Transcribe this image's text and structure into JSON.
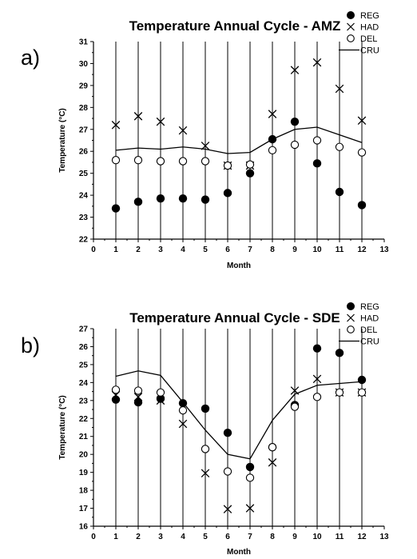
{
  "chart_data": [
    {
      "type": "scatter",
      "panel_label": "a)",
      "title": "Temperature Annual Cycle - AMZ",
      "xlabel": "Month",
      "ylabel": "Temperature (°C)",
      "xlim": [
        0,
        13
      ],
      "ylim": [
        22,
        31
      ],
      "x_ticks": [
        0,
        1,
        2,
        3,
        4,
        5,
        6,
        7,
        8,
        9,
        10,
        11,
        12,
        13
      ],
      "y_ticks": [
        22,
        23,
        24,
        25,
        26,
        27,
        28,
        29,
        30,
        31
      ],
      "vertical_grid": true,
      "legend_position": "top-right",
      "x": [
        1,
        2,
        3,
        4,
        5,
        6,
        7,
        8,
        9,
        10,
        11,
        12
      ],
      "series": [
        {
          "name": "REG",
          "marker": "filled-circle",
          "values": [
            23.4,
            23.7,
            23.85,
            23.85,
            23.8,
            24.1,
            25.0,
            26.55,
            27.35,
            25.45,
            24.15,
            23.55
          ]
        },
        {
          "name": "HAD",
          "marker": "x",
          "values": [
            27.2,
            27.6,
            27.35,
            26.95,
            26.25,
            25.35,
            25.35,
            27.7,
            29.7,
            30.05,
            28.85,
            27.4
          ]
        },
        {
          "name": "DEL",
          "marker": "open-circle",
          "values": [
            25.6,
            25.6,
            25.55,
            25.55,
            25.55,
            25.35,
            25.4,
            26.05,
            26.3,
            26.5,
            26.2,
            25.95
          ]
        },
        {
          "name": "CRU",
          "marker": "line",
          "values": [
            26.05,
            26.15,
            26.1,
            26.2,
            26.1,
            25.9,
            25.95,
            26.55,
            27.0,
            27.1,
            26.75,
            26.4
          ]
        }
      ]
    },
    {
      "type": "scatter",
      "panel_label": "b)",
      "title": "Temperature Annual Cycle - SDE",
      "xlabel": "Month",
      "ylabel": "Temperature (°C)",
      "xlim": [
        0,
        13
      ],
      "ylim": [
        16,
        27
      ],
      "x_ticks": [
        0,
        1,
        2,
        3,
        4,
        5,
        6,
        7,
        8,
        9,
        10,
        11,
        12,
        13
      ],
      "y_ticks": [
        16,
        17,
        18,
        19,
        20,
        21,
        22,
        23,
        24,
        25,
        26,
        27
      ],
      "vertical_grid": true,
      "legend_position": "top-right",
      "x": [
        1,
        2,
        3,
        4,
        5,
        6,
        7,
        8,
        9,
        10,
        11,
        12
      ],
      "series": [
        {
          "name": "REG",
          "marker": "filled-circle",
          "values": [
            23.05,
            22.9,
            23.1,
            22.85,
            22.55,
            21.2,
            19.3,
            20.4,
            22.75,
            25.9,
            25.65,
            24.15
          ]
        },
        {
          "name": "HAD",
          "marker": "x",
          "values": [
            23.3,
            23.2,
            23.0,
            21.7,
            18.95,
            16.95,
            17.0,
            19.55,
            23.55,
            24.2,
            23.45,
            23.45
          ]
        },
        {
          "name": "DEL",
          "marker": "open-circle",
          "values": [
            23.6,
            23.55,
            23.45,
            22.45,
            20.3,
            19.05,
            18.7,
            20.4,
            22.65,
            23.2,
            23.45,
            23.45
          ]
        },
        {
          "name": "CRU",
          "marker": "line",
          "values": [
            24.35,
            24.65,
            24.4,
            22.9,
            21.35,
            20.0,
            19.75,
            21.9,
            23.35,
            23.85,
            23.95,
            24.05
          ]
        }
      ]
    }
  ]
}
